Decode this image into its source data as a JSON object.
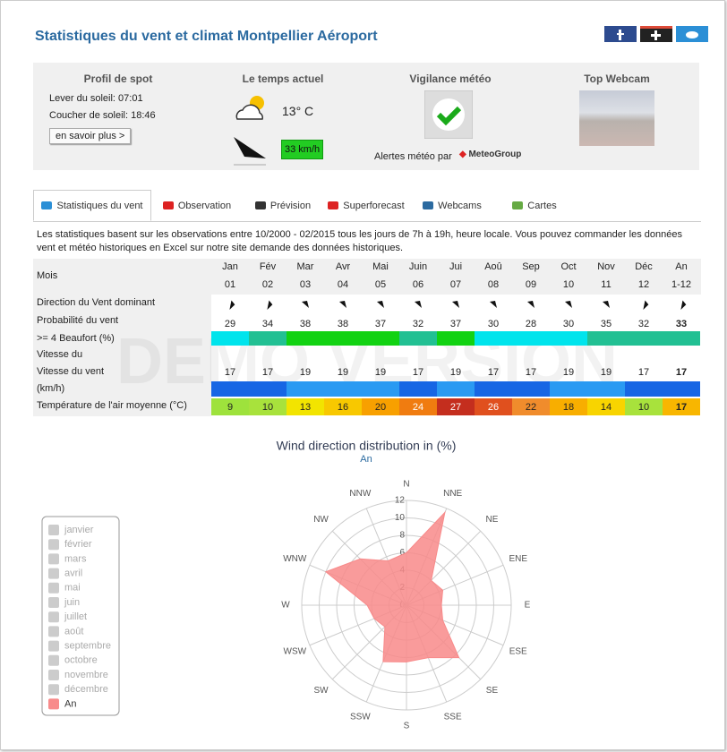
{
  "header": {
    "title": "Statistiques du vent et climat Montpellier Aéroport"
  },
  "info": {
    "spot": {
      "title": "Profil de spot",
      "sunrise": "Lever du soleil: 07:01",
      "sunset": "Coucher de soleil: 18:46",
      "button": "en savoir plus >"
    },
    "weather": {
      "title": "Le temps actuel",
      "temperature": "13° C",
      "wind": "33 km/h"
    },
    "vigilance": {
      "title": "Vigilance météo",
      "alerts": "Alertes météo par",
      "brand": "MeteoGroup"
    },
    "webcam": {
      "title": "Top Webcam"
    }
  },
  "tabs": [
    "Statistiques du vent",
    "Observation",
    "Prévision",
    "Superforecast",
    "Webcams",
    "Cartes"
  ],
  "description": "Les statistiques basent sur les observations entre 10/2000 - 02/2015 tous les jours de 7h à 19h, heure locale. Vous pouvez commander les données vent et météo historiques en Excel sur notre site demande des données historiques.",
  "table": {
    "month_label": "Mois",
    "months": [
      "Jan",
      "Fév",
      "Mar",
      "Avr",
      "Mai",
      "Juin",
      "Jui",
      "Aoû",
      "Sep",
      "Oct",
      "Nov",
      "Déc",
      "An"
    ],
    "month_numbers": [
      "01",
      "02",
      "03",
      "04",
      "05",
      "06",
      "07",
      "08",
      "09",
      "10",
      "11",
      "12",
      "1-12"
    ],
    "direction_label": "Direction du Vent dominant",
    "probability_label": [
      "Probabilité du vent",
      ">= 4 Beaufort (%)"
    ],
    "probability": [
      29,
      34,
      38,
      38,
      37,
      32,
      37,
      30,
      28,
      30,
      35,
      32,
      33
    ],
    "probability_colors": [
      "#00e4ec",
      "#22c093",
      "#12d212",
      "#12d212",
      "#12d212",
      "#22c093",
      "#12d212",
      "#00e4ec",
      "#00e4ec",
      "#00e4ec",
      "#22c093",
      "#22c093",
      "#22c093"
    ],
    "speed_label": [
      "Vitesse du",
      "Vitesse du vent",
      "(km/h)"
    ],
    "speed": [
      17,
      17,
      19,
      19,
      19,
      17,
      19,
      17,
      17,
      19,
      19,
      17,
      17
    ],
    "speed_colors": [
      "#1766e4",
      "#1766e4",
      "#2a9af2",
      "#2a9af2",
      "#2a9af2",
      "#1766e4",
      "#2a9af2",
      "#1766e4",
      "#1766e4",
      "#2a9af2",
      "#2a9af2",
      "#1766e4",
      "#1766e4"
    ],
    "temperature_label": "Température de l'air moyenne (°C)",
    "temperature": [
      9,
      10,
      13,
      16,
      20,
      24,
      27,
      26,
      22,
      18,
      14,
      10,
      17
    ],
    "temperature_colors": [
      "#9ee23c",
      "#a8e23c",
      "#f2e400",
      "#f8c800",
      "#f8a000",
      "#f07c10",
      "#c42e1e",
      "#e0501e",
      "#f08c2c",
      "#f8ae00",
      "#f8d400",
      "#a8e23c",
      "#f8b600"
    ]
  },
  "watermark": "DEMO VERSION",
  "chart_data": {
    "type": "radar",
    "title": "Wind direction distribution in (%)",
    "subtitle": "An",
    "categories": [
      "N",
      "NNE",
      "NE",
      "ENE",
      "E",
      "ESE",
      "SE",
      "SSE",
      "S",
      "SSW",
      "SW",
      "WSW",
      "W",
      "WNW",
      "NW",
      "NNW"
    ],
    "rlim": [
      0,
      12
    ],
    "rticks": [
      0,
      2,
      4,
      6,
      8,
      10,
      12
    ],
    "series": [
      {
        "name": "An",
        "color": "#f88a8a",
        "values": [
          6,
          11.5,
          4,
          4.5,
          4,
          4.5,
          8.5,
          6.5,
          6.5,
          7,
          3.5,
          4,
          4.5,
          10,
          7.5,
          5.5
        ]
      }
    ],
    "inactive_series": [
      "janvier",
      "février",
      "mars",
      "avril",
      "mai",
      "juin",
      "juillet",
      "août",
      "septembre",
      "octobre",
      "novembre",
      "décembre"
    ],
    "inactive_color": "#cccccc"
  }
}
